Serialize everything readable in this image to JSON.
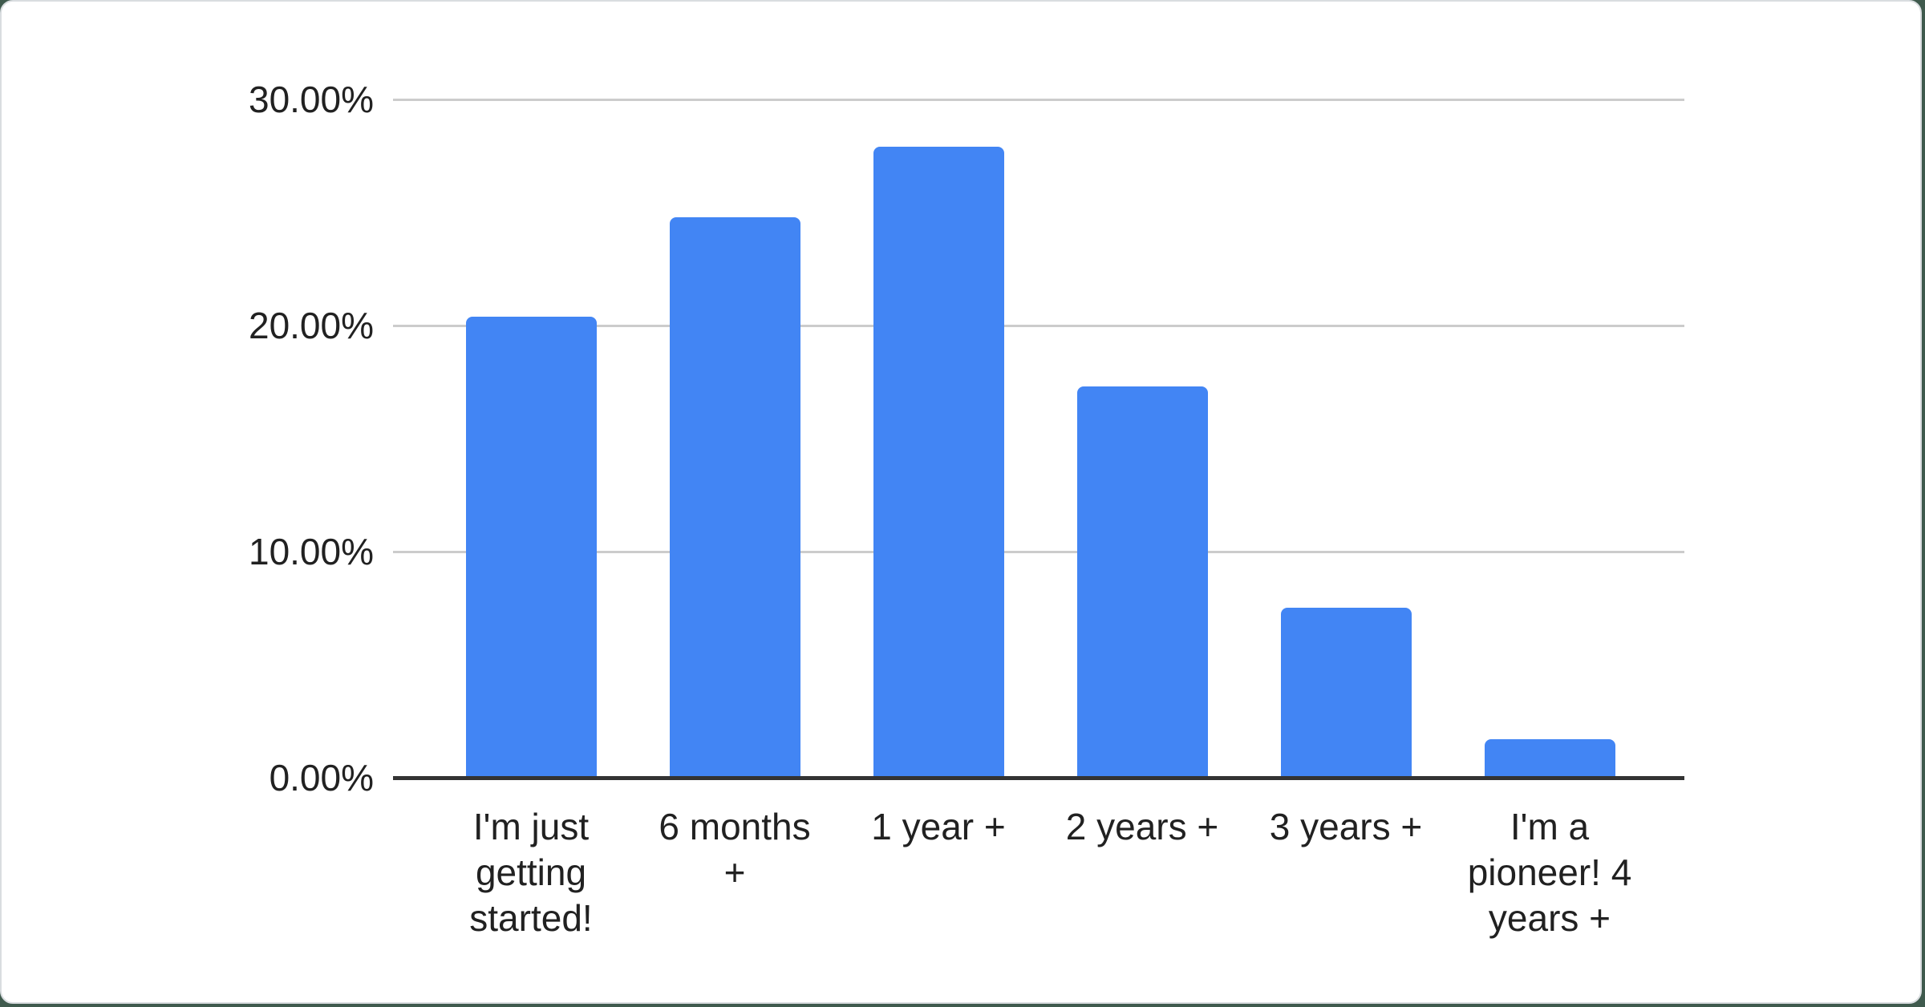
{
  "page": {
    "background_color": "#3f5a4d",
    "card_color": "#ffffff",
    "card_border_color": "#d9dde0"
  },
  "chart_data": {
    "type": "bar",
    "title": "",
    "xlabel": "",
    "ylabel": "",
    "legend": "none",
    "grid": true,
    "ylim": [
      0,
      30
    ],
    "bar_color": "#4285f4",
    "gridline_color": "#cccccc",
    "axis_line_color": "#333333",
    "label_color": "#212121",
    "categories": [
      "I'm just getting started!",
      "6 months +",
      "1 year +",
      "2 years +",
      "3 years +",
      "I'm a pioneer! 4 years +"
    ],
    "values": [
      20.4,
      24.8,
      27.9,
      17.3,
      7.5,
      1.7
    ],
    "y_ticks": [
      {
        "value": 0,
        "label": "0.00%"
      },
      {
        "value": 10,
        "label": "10.00%"
      },
      {
        "value": 20,
        "label": "20.00%"
      },
      {
        "value": 30,
        "label": "30.00%"
      }
    ]
  }
}
